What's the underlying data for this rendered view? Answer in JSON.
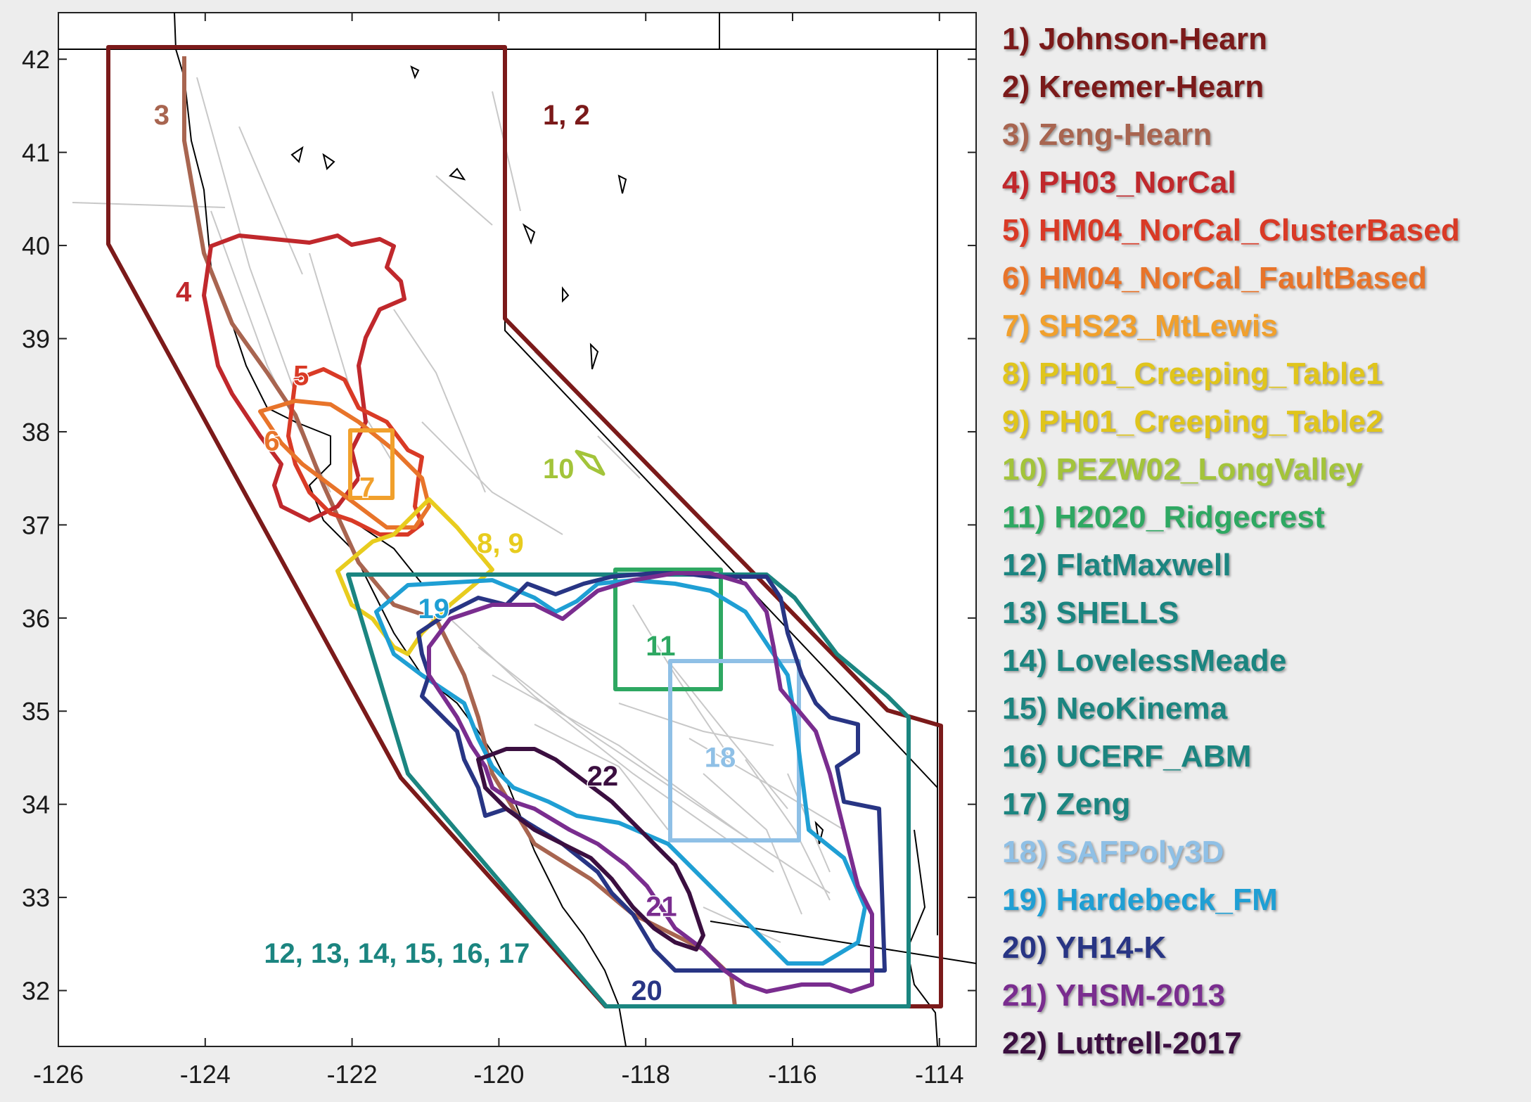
{
  "map": {
    "x_ticks": [
      -126,
      -124,
      -122,
      -120,
      -118,
      -116,
      -114
    ],
    "y_ticks": [
      32,
      33,
      34,
      35,
      36,
      37,
      38,
      39,
      40,
      41,
      42
    ],
    "xlim": [
      -126,
      -113.5
    ],
    "ylim": [
      31.4,
      42.5
    ],
    "colors": {
      "axes_background": "#ffffff",
      "page_background": "#ededed",
      "faults": "#c8c8c8",
      "coastline": "#000000",
      "state_borders": "#000000"
    }
  },
  "region_labels": [
    {
      "id": "r1",
      "text": "1, 2",
      "color": "#7b1a1a",
      "lon": -119.4,
      "lat": 41.3
    },
    {
      "id": "r3",
      "text": "3",
      "color": "#a86550",
      "lon": -124.7,
      "lat": 41.3
    },
    {
      "id": "r4",
      "text": "4",
      "color": "#c0282c",
      "lon": -124.4,
      "lat": 39.4
    },
    {
      "id": "r5",
      "text": "5",
      "color": "#d93a26",
      "lon": -122.8,
      "lat": 38.5
    },
    {
      "id": "r6",
      "text": "6",
      "color": "#e8742a",
      "lon": -123.2,
      "lat": 37.8
    },
    {
      "id": "r7",
      "text": "7",
      "color": "#f1a02c",
      "lon": -121.9,
      "lat": 37.3
    },
    {
      "id": "r89",
      "text": "8, 9",
      "color": "#e8cc1e",
      "lon": -120.3,
      "lat": 36.7
    },
    {
      "id": "r10",
      "text": "10",
      "color": "#a3c43a",
      "lon": -119.4,
      "lat": 37.5
    },
    {
      "id": "r11",
      "text": "11",
      "color": "#2ea862",
      "lon": -118.0,
      "lat": 35.6
    },
    {
      "id": "r12",
      "text": "12, 13, 14, 15, 16, 17",
      "color": "#1b8580",
      "lon": -123.2,
      "lat": 32.3
    },
    {
      "id": "r18",
      "text": "18",
      "color": "#8fc0e6",
      "lon": -117.2,
      "lat": 34.4
    },
    {
      "id": "r19",
      "text": "19",
      "color": "#1f9fd4",
      "lon": -121.1,
      "lat": 36.0
    },
    {
      "id": "r20",
      "text": "20",
      "color": "#283584",
      "lon": -118.2,
      "lat": 31.9
    },
    {
      "id": "r21",
      "text": "21",
      "color": "#7a2d8f",
      "lon": -118.0,
      "lat": 32.8
    },
    {
      "id": "r22",
      "text": "22",
      "color": "#3b0f40",
      "lon": -118.8,
      "lat": 34.2
    }
  ],
  "legend": [
    {
      "text": "1) Johnson-Hearn",
      "color": "#7b1a1a"
    },
    {
      "text": "2) Kreemer-Hearn",
      "color": "#7b1a1a"
    },
    {
      "text": "3) Zeng-Hearn",
      "color": "#a86550"
    },
    {
      "text": "4) PH03_NorCal",
      "color": "#c0282c"
    },
    {
      "text": "5) HM04_NorCal_ClusterBased",
      "color": "#d93a26"
    },
    {
      "text": "6) HM04_NorCal_FaultBased",
      "color": "#e8742a"
    },
    {
      "text": "7) SHS23_MtLewis",
      "color": "#f1a02c"
    },
    {
      "text": "8) PH01_Creeping_Table1",
      "color": "#e0c51c"
    },
    {
      "text": "9) PH01_Creeping_Table2",
      "color": "#e0c51c"
    },
    {
      "text": "10) PEZW02_LongValley",
      "color": "#a3c43a"
    },
    {
      "text": "11) H2020_Ridgecrest",
      "color": "#2ea862"
    },
    {
      "text": "12) FlatMaxwell",
      "color": "#1b8580"
    },
    {
      "text": "13) SHELLS",
      "color": "#1b8580"
    },
    {
      "text": "14) LovelessMeade",
      "color": "#1b8580"
    },
    {
      "text": "15) NeoKinema",
      "color": "#1b8580"
    },
    {
      "text": "16) UCERF_ABM",
      "color": "#1b8580"
    },
    {
      "text": "17) Zeng",
      "color": "#1b8580"
    },
    {
      "text": "18) SAFPoly3D",
      "color": "#8fc0e6"
    },
    {
      "text": "19) Hardebeck_FM",
      "color": "#1f9fd4"
    },
    {
      "text": "20) YH14-K",
      "color": "#283584"
    },
    {
      "text": "21) YHSM-2013",
      "color": "#7a2d8f"
    },
    {
      "text": "22) Luttrell-2017",
      "color": "#3b0f40"
    }
  ]
}
